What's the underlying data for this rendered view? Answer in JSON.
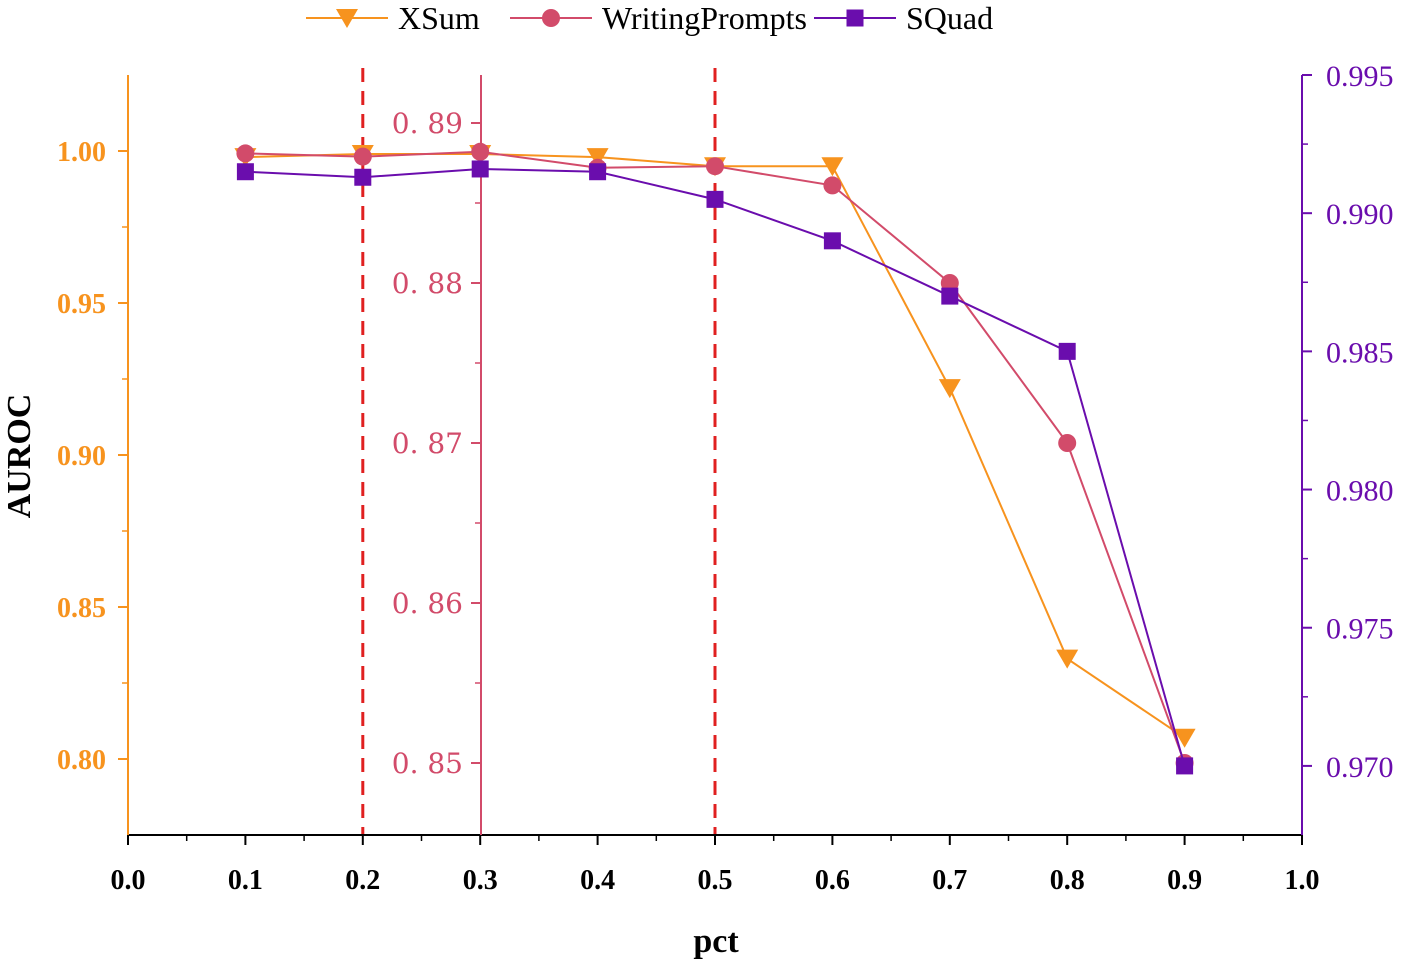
{
  "chart_data": {
    "type": "line",
    "title": "",
    "xlabel": "pct",
    "ylabel": "AUROC",
    "xlim": [
      0.0,
      1.0
    ],
    "x_ticks": [
      "0.0",
      "0.1",
      "0.2",
      "0.3",
      "0.4",
      "0.5",
      "0.6",
      "0.7",
      "0.8",
      "0.9",
      "1.0"
    ],
    "x": [
      0.1,
      0.2,
      0.3,
      0.4,
      0.5,
      0.6,
      0.7,
      0.8,
      0.9
    ],
    "axes": {
      "left": {
        "color": "#F7931E",
        "ylim": [
          0.775,
          1.025
        ],
        "ticks": [
          "1.00",
          "0.95",
          "0.90",
          "0.85",
          "0.80"
        ],
        "tick_values": [
          1.0,
          0.95,
          0.9,
          0.85,
          0.8
        ]
      },
      "middle": {
        "color": "#D24B6A",
        "ylim": [
          0.8455,
          0.893
        ],
        "ticks": [
          "0. 89",
          "0. 88",
          "0. 87",
          "0. 86",
          "0. 85"
        ],
        "tick_values": [
          0.89,
          0.88,
          0.87,
          0.86,
          0.85
        ]
      },
      "right": {
        "color": "#6A0DAD",
        "ylim": [
          0.9675,
          0.995
        ],
        "ticks": [
          "0.995",
          "0.990",
          "0.985",
          "0.980",
          "0.975",
          "0.970"
        ],
        "tick_values": [
          0.995,
          0.99,
          0.985,
          0.98,
          0.975,
          0.97
        ]
      }
    },
    "series": [
      {
        "name": "XSum",
        "axis": "left",
        "color": "#F7931E",
        "marker": "triangle-down",
        "values": [
          0.998,
          0.999,
          0.999,
          0.998,
          0.995,
          0.995,
          0.922,
          0.833,
          0.807
        ]
      },
      {
        "name": "WritingPrompts",
        "axis": "middle",
        "color": "#D24B6A",
        "marker": "circle",
        "values": [
          0.8881,
          0.8879,
          0.8882,
          0.8872,
          0.8873,
          0.8861,
          0.88,
          0.87,
          0.85
        ]
      },
      {
        "name": "SQuad",
        "axis": "right",
        "color": "#6A0DAD",
        "marker": "square",
        "values": [
          0.9915,
          0.9913,
          0.9916,
          0.9915,
          0.9905,
          0.989,
          0.987,
          0.985,
          0.97
        ]
      }
    ],
    "reference_lines": [
      {
        "x": 0.2,
        "style": "dashed",
        "color": "#E02020"
      },
      {
        "x": 0.5,
        "style": "dashed",
        "color": "#E02020"
      }
    ],
    "legend_position": "top-center"
  }
}
